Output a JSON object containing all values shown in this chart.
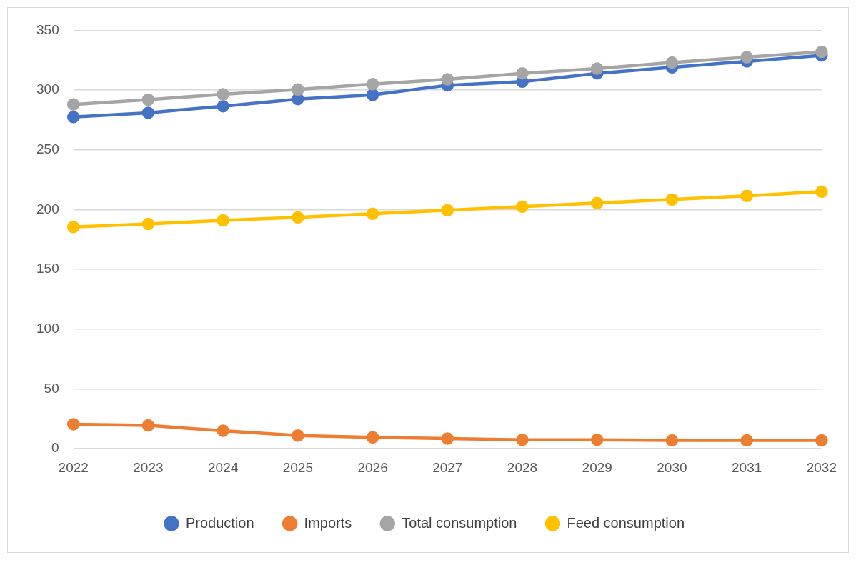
{
  "chart_data": {
    "type": "line",
    "categories": [
      "2022",
      "2023",
      "2024",
      "2025",
      "2026",
      "2027",
      "2028",
      "2029",
      "2030",
      "2031",
      "2032"
    ],
    "series": [
      {
        "name": "Production",
        "color": "#4472c4",
        "values": [
          277.5,
          281,
          286.5,
          292.5,
          296,
          304,
          307,
          314,
          319,
          324,
          329
        ]
      },
      {
        "name": "Imports",
        "color": "#ed7d31",
        "values": [
          20.5,
          19.5,
          15,
          11,
          9.5,
          8.5,
          7.5,
          7.5,
          7,
          7,
          7
        ]
      },
      {
        "name": "Total consumption",
        "color": "#a5a5a5",
        "values": [
          288,
          292,
          296.5,
          300.5,
          305,
          309,
          314,
          318,
          323,
          327.5,
          332
        ]
      },
      {
        "name": "Feed consumption",
        "color": "#ffc000",
        "values": [
          185.5,
          188,
          191,
          193.5,
          196.5,
          199.5,
          202.5,
          205.5,
          208.5,
          211.5,
          215
        ]
      }
    ],
    "ylim": [
      0,
      350
    ],
    "yticks": [
      0,
      50,
      100,
      150,
      200,
      250,
      300,
      350
    ],
    "grid": "y",
    "legend": "bottom",
    "marker": "circle",
    "line_style": "solid"
  }
}
